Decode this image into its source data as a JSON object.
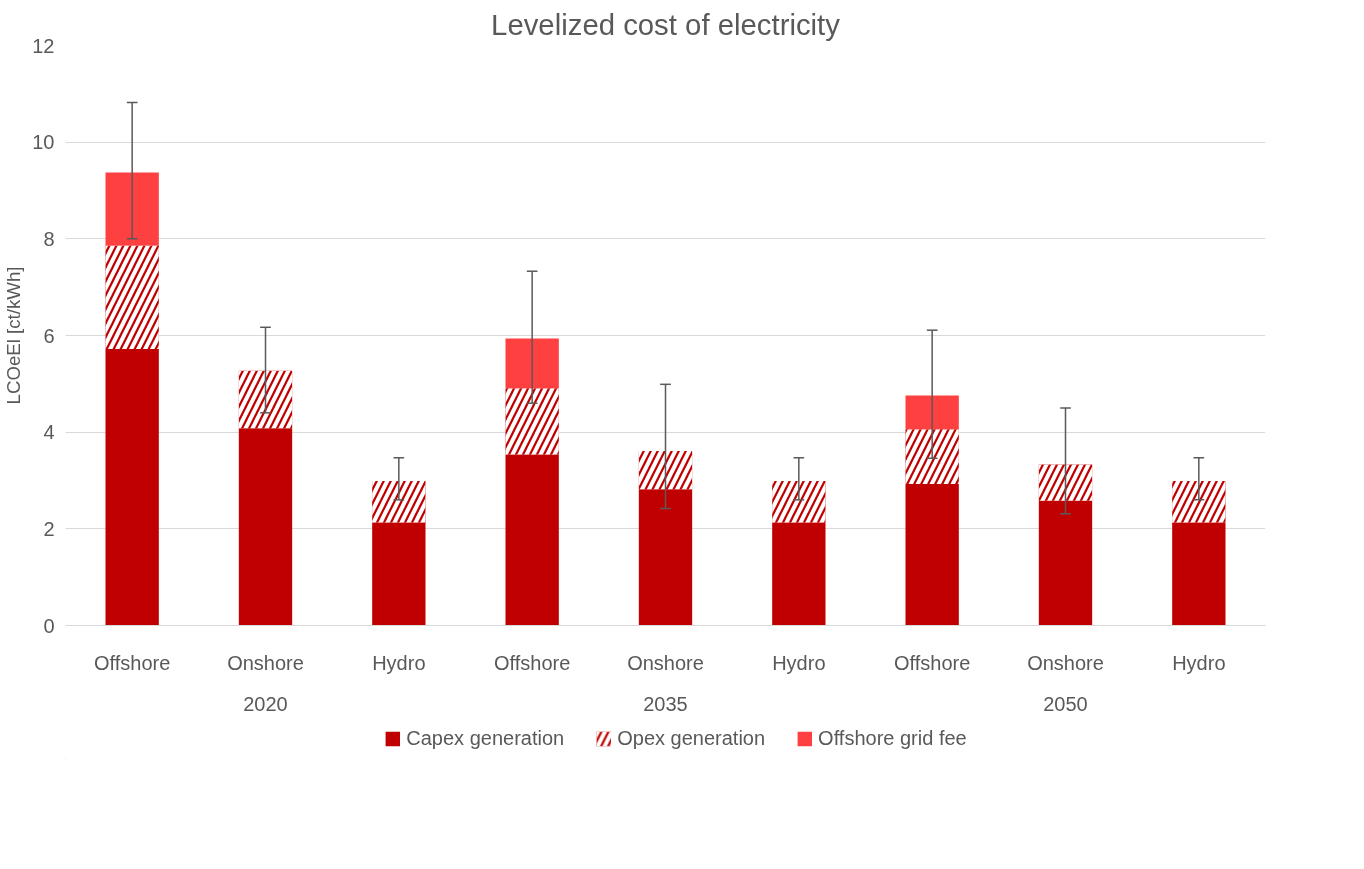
{
  "chart_data": {
    "type": "bar",
    "title": "Levelized cost of electricity",
    "ylabel": "LCOeEl [ct/kWh]",
    "categories": [
      "Offshore",
      "Onshore",
      "Hydro",
      "Offshore",
      "Onshore",
      "Hydro",
      "Offshore",
      "Onshore",
      "Hydro"
    ],
    "annotations": [
      "2020",
      "2035",
      "2050"
    ],
    "stacked": true,
    "series": [
      {
        "name": "Capex generation",
        "color": "#c00000",
        "values": [
          5.72,
          4.08,
          2.13,
          3.54,
          2.82,
          2.13,
          2.93,
          2.58,
          2.13
        ]
      },
      {
        "name": "Opex generation",
        "color": "#c00000",
        "values": [
          2.14,
          1.19,
          0.86,
          1.37,
          0.79,
          0.86,
          1.13,
          0.75,
          0.86
        ],
        "errors": [
          null,
          [
            4.4,
            6.17
          ],
          [
            2.6,
            3.47
          ],
          null,
          [
            2.42,
            4.99
          ],
          [
            2.6,
            3.47
          ],
          null,
          [
            2.31,
            4.5
          ],
          [
            2.6,
            3.47
          ]
        ]
      },
      {
        "name": "Offshore grid fee",
        "color": "#ff4040",
        "values": [
          1.51,
          null,
          null,
          1.03,
          null,
          null,
          0.7,
          null,
          null
        ],
        "errors": [
          [
            8.0,
            10.82
          ],
          null,
          null,
          [
            4.6,
            7.33
          ],
          null,
          null,
          [
            3.46,
            6.11
          ],
          null,
          null
        ]
      }
    ],
    "ylim": [
      0,
      12
    ],
    "yticks": [
      0,
      2,
      4,
      6,
      8,
      10,
      12
    ],
    "grid": "y",
    "legend": "bottom"
  }
}
